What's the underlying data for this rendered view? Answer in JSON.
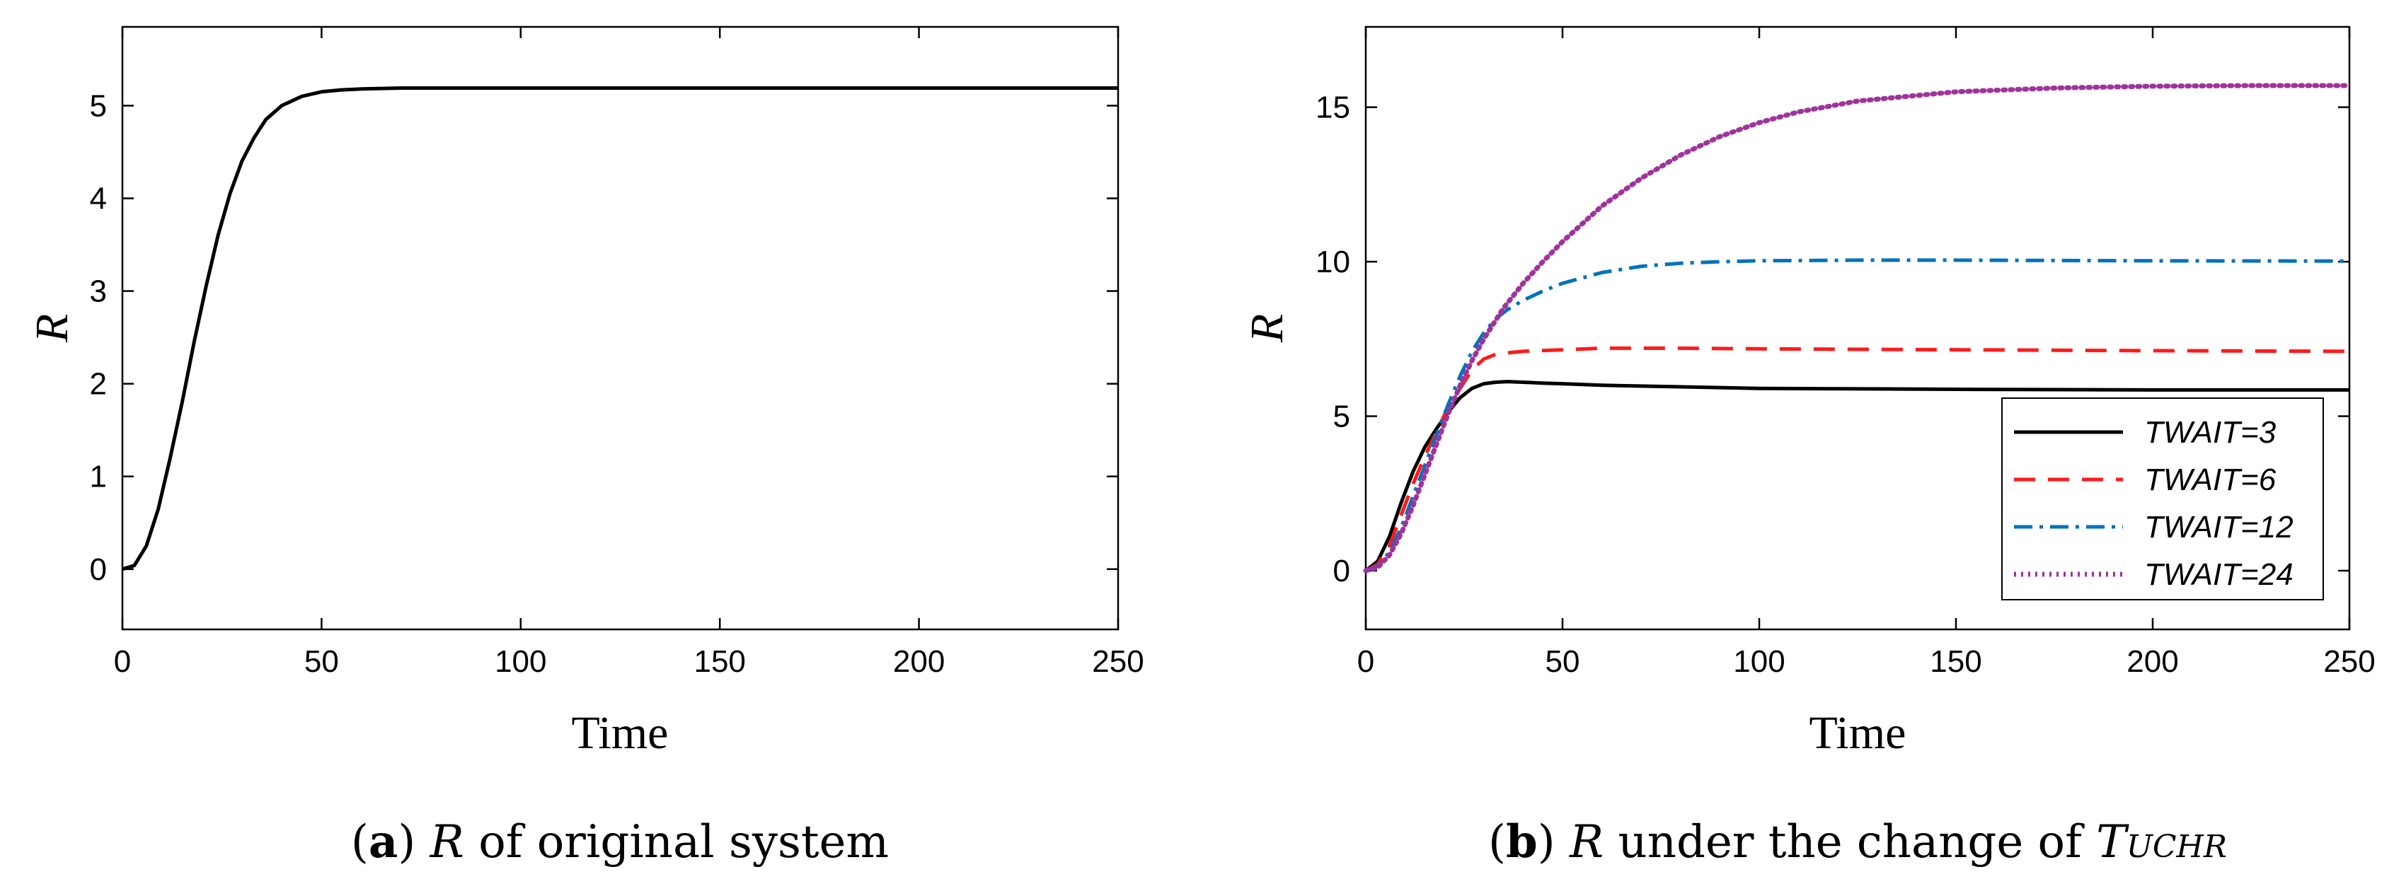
{
  "captions": {
    "a": {
      "letter": "a",
      "text_italic": "R",
      "text": " of original system"
    },
    "b": {
      "letter": "b",
      "text_italic": "R",
      "text": " under the change of ",
      "sym": "T",
      "sub": "UCHR"
    }
  },
  "chart_data": [
    {
      "type": "line",
      "panel": "a",
      "xlabel": "Time",
      "ylabel": "R",
      "xlim": [
        0,
        250
      ],
      "ylim": [
        -0.65,
        5.85
      ],
      "xticks": [
        "0",
        "50",
        "100",
        "150",
        "200",
        "250"
      ],
      "yticks": [
        "0",
        "1",
        "2",
        "3",
        "4",
        "5"
      ],
      "grid": false,
      "series": [
        {
          "color": "#000000",
          "style": "solid",
          "x": [
            0,
            3,
            6,
            9,
            12,
            15,
            18,
            21,
            24,
            27,
            30,
            33,
            36,
            40,
            45,
            50,
            55,
            60,
            70,
            80,
            100,
            150,
            200,
            250
          ],
          "y": [
            0,
            0.04,
            0.25,
            0.65,
            1.2,
            1.8,
            2.45,
            3.05,
            3.6,
            4.05,
            4.4,
            4.65,
            4.85,
            5.0,
            5.1,
            5.15,
            5.17,
            5.18,
            5.19,
            5.19,
            5.19,
            5.19,
            5.19,
            5.19
          ]
        }
      ]
    },
    {
      "type": "line",
      "panel": "b",
      "xlabel": "Time",
      "ylabel": "R",
      "xlim": [
        0,
        250
      ],
      "ylim": [
        -1.9,
        17.6
      ],
      "xticks": [
        "0",
        "50",
        "100",
        "150",
        "200",
        "250"
      ],
      "yticks": [
        "0",
        "5",
        "10",
        "15"
      ],
      "grid": false,
      "legend": "bottom-right",
      "series": [
        {
          "name": "TWAIT=3",
          "color": "#000000",
          "style": "solid",
          "x": [
            0,
            3,
            6,
            9,
            12,
            15,
            18,
            21,
            24,
            27,
            30,
            33,
            36,
            40,
            45,
            50,
            60,
            80,
            100,
            150,
            200,
            250
          ],
          "y": [
            0,
            0.3,
            1.1,
            2.2,
            3.2,
            4.0,
            4.6,
            5.15,
            5.6,
            5.9,
            6.05,
            6.1,
            6.12,
            6.1,
            6.07,
            6.05,
            6.0,
            5.95,
            5.9,
            5.87,
            5.85,
            5.85
          ]
        },
        {
          "name": "TWAIT=6",
          "color": "#ff1a1a",
          "style": "dashed",
          "x": [
            0,
            3,
            6,
            9,
            12,
            15,
            18,
            21,
            24,
            27,
            30,
            33,
            36,
            40,
            50,
            60,
            70,
            80,
            100,
            150,
            200,
            250
          ],
          "y": [
            0,
            0.2,
            0.8,
            1.8,
            2.8,
            3.7,
            4.5,
            5.3,
            5.9,
            6.5,
            6.85,
            7.0,
            7.05,
            7.1,
            7.15,
            7.2,
            7.2,
            7.2,
            7.18,
            7.15,
            7.12,
            7.1
          ]
        },
        {
          "name": "TWAIT=12",
          "color": "#0072bd",
          "style": "dashdot",
          "x": [
            0,
            3,
            6,
            9,
            12,
            15,
            18,
            21,
            24,
            27,
            30,
            33,
            36,
            40,
            45,
            50,
            60,
            70,
            80,
            90,
            100,
            125,
            150,
            200,
            250
          ],
          "y": [
            0,
            0.15,
            0.6,
            1.4,
            2.4,
            3.4,
            4.4,
            5.4,
            6.3,
            7.1,
            7.7,
            8.15,
            8.45,
            8.75,
            9.05,
            9.3,
            9.65,
            9.85,
            9.95,
            10.0,
            10.03,
            10.05,
            10.05,
            10.03,
            10.02
          ]
        },
        {
          "name": "TWAIT=24",
          "color": "#a0339b",
          "style": "dotted",
          "x": [
            0,
            3,
            6,
            9,
            12,
            15,
            18,
            21,
            24,
            27,
            30,
            35,
            40,
            45,
            50,
            60,
            70,
            80,
            90,
            100,
            110,
            125,
            150,
            175,
            200,
            225,
            250
          ],
          "y": [
            0,
            0.1,
            0.5,
            1.2,
            2.1,
            3.1,
            4.1,
            5.1,
            6.0,
            6.8,
            7.5,
            8.5,
            9.3,
            10.0,
            10.65,
            11.8,
            12.7,
            13.45,
            14.05,
            14.5,
            14.85,
            15.2,
            15.5,
            15.62,
            15.68,
            15.7,
            15.7
          ]
        }
      ]
    }
  ]
}
